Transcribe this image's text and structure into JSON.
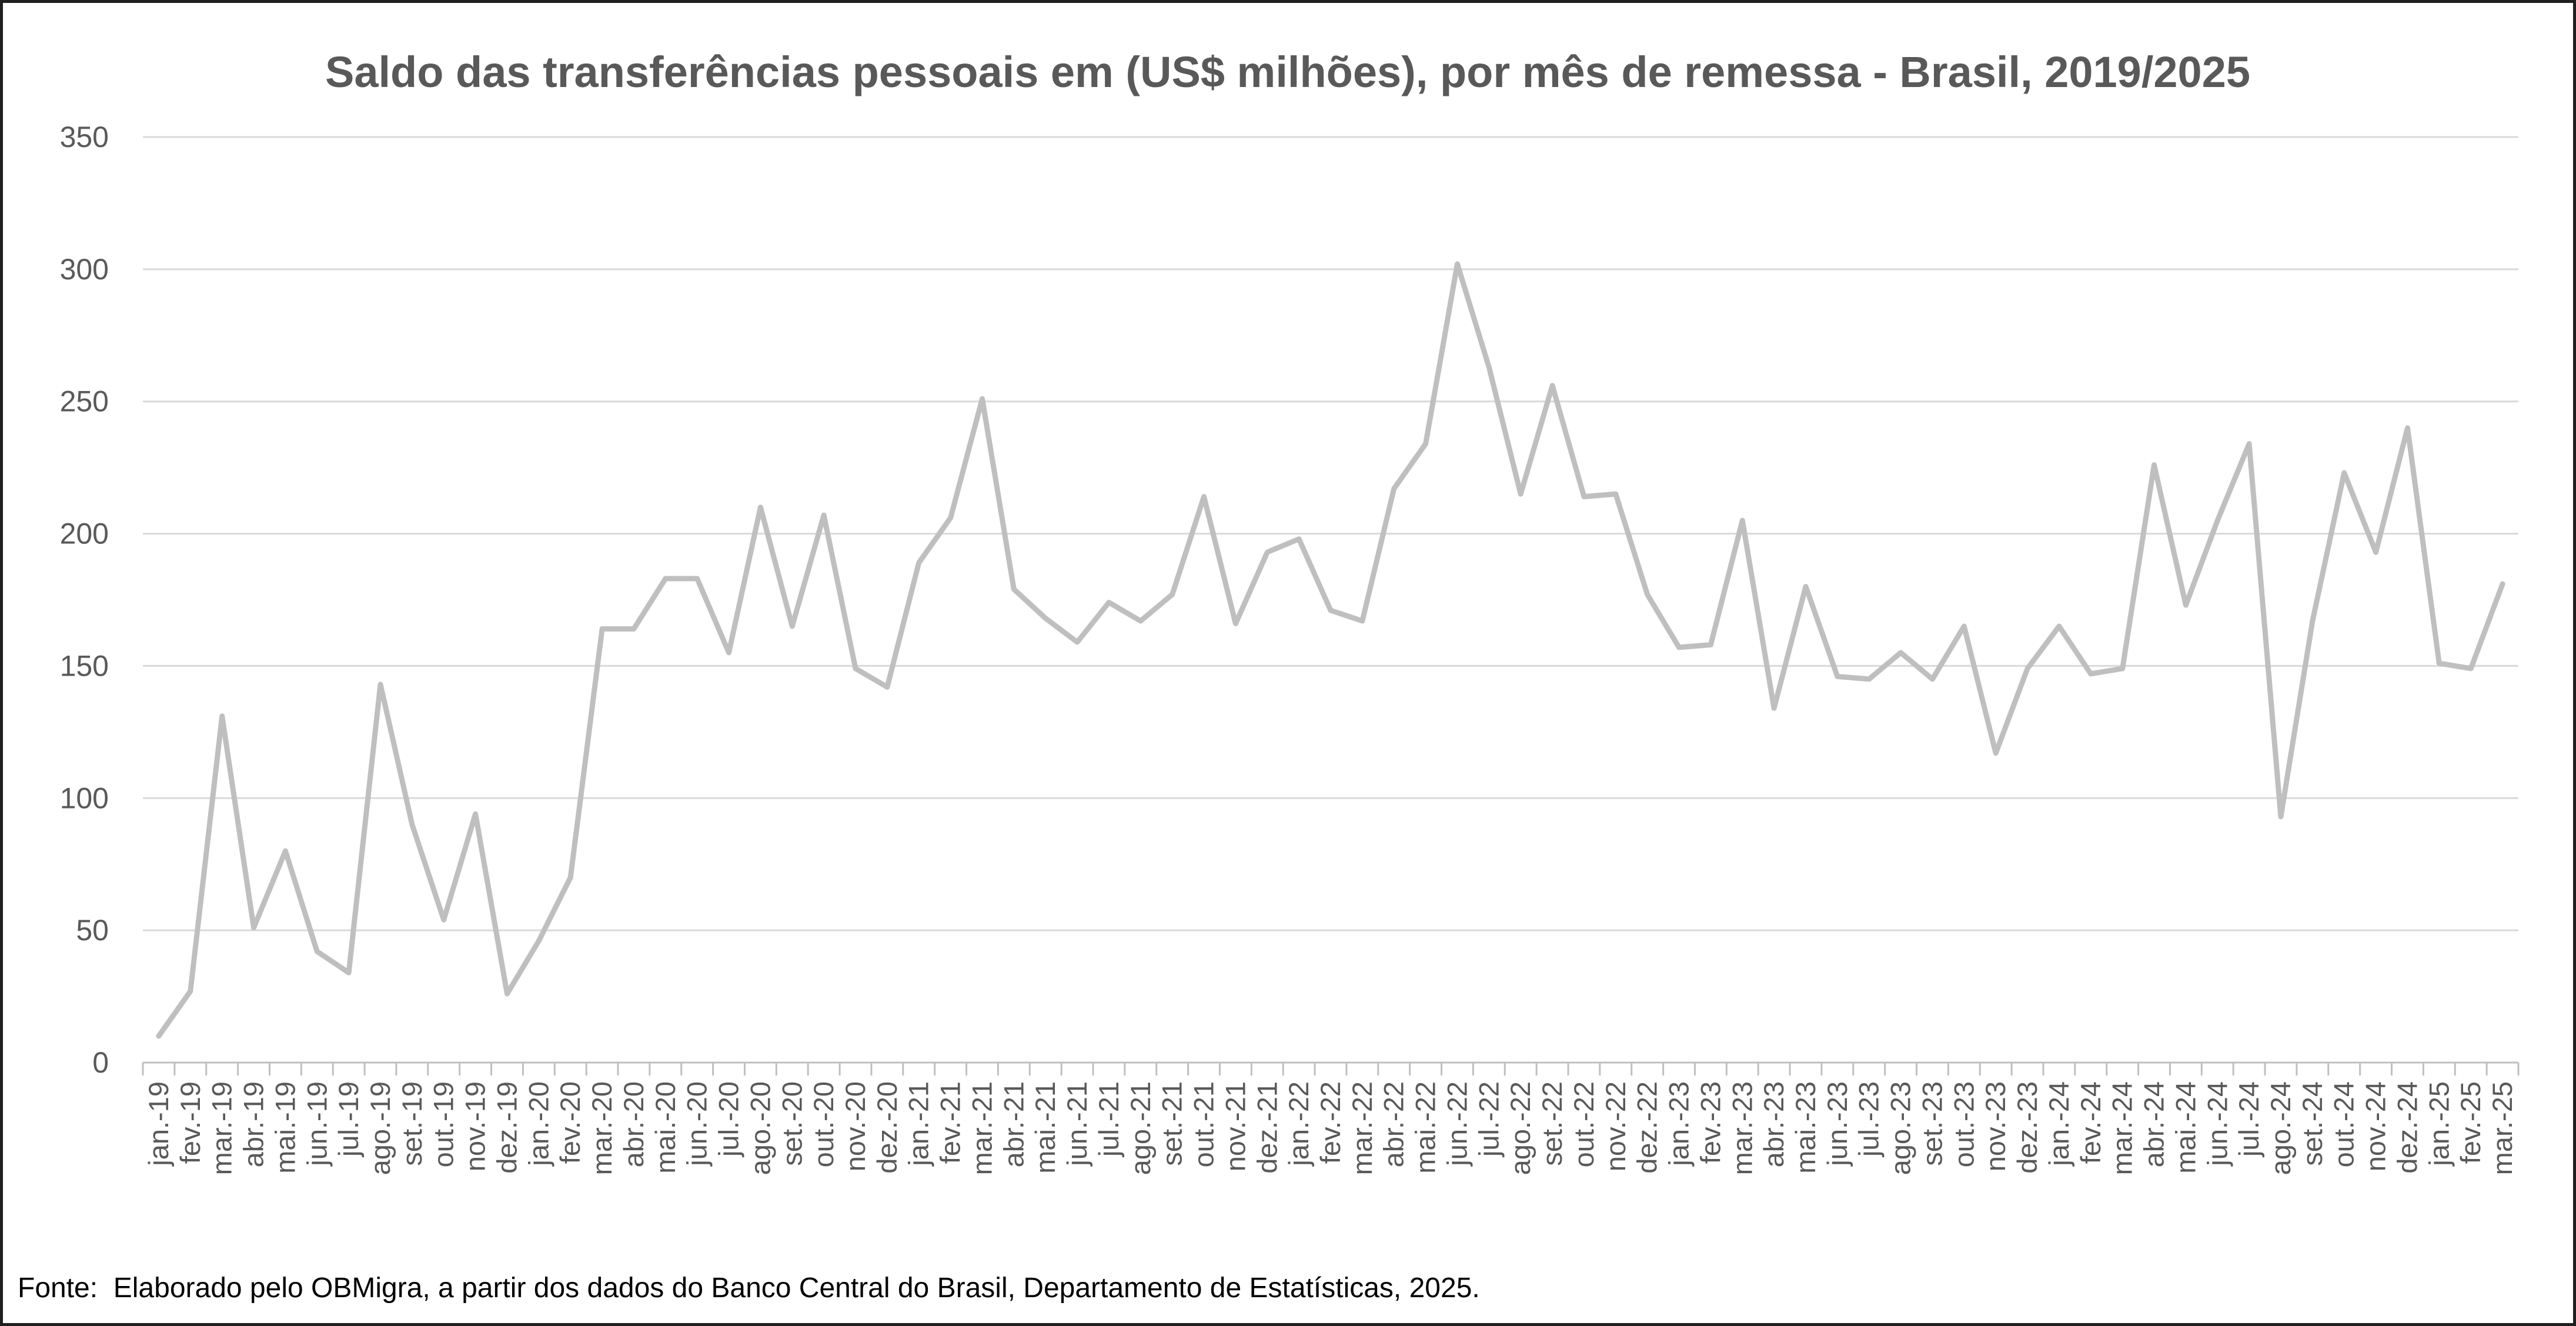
{
  "footer": {
    "source": "Fonte:  Elaborado pelo OBMigra, a partir dos dados do Banco Central do Brasil, Departamento de Estatísticas, 2025."
  },
  "colors": {
    "line": "#BFBFBF",
    "grid": "#D9D9D9",
    "axis": "#BFBFBF",
    "text": "#595959"
  },
  "chart_data": {
    "type": "line",
    "title": "Saldo das transferências pessoais em (US$ milhões), por mês de remessa - Brasil, 2019/2025",
    "xlabel": "",
    "ylabel": "",
    "ylim": [
      0,
      350
    ],
    "yticks": [
      0,
      50,
      100,
      150,
      200,
      250,
      300,
      350
    ],
    "grid": true,
    "legend": "none",
    "categories": [
      "jan.-19",
      "fev.-19",
      "mar.-19",
      "abr.-19",
      "mai.-19",
      "jun.-19",
      "jul.-19",
      "ago.-19",
      "set.-19",
      "out.-19",
      "nov.-19",
      "dez.-19",
      "jan.-20",
      "fev.-20",
      "mar.-20",
      "abr.-20",
      "mai.-20",
      "jun.-20",
      "jul.-20",
      "ago.-20",
      "set.-20",
      "out.-20",
      "nov.-20",
      "dez.-20",
      "jan.-21",
      "fev.-21",
      "mar.-21",
      "abr.-21",
      "mai.-21",
      "jun.-21",
      "jul.-21",
      "ago.-21",
      "set.-21",
      "out.-21",
      "nov.-21",
      "dez.-21",
      "jan.-22",
      "fev.-22",
      "mar.-22",
      "abr.-22",
      "mai.-22",
      "jun.-22",
      "jul.-22",
      "ago.-22",
      "set.-22",
      "out.-22",
      "nov.-22",
      "dez.-22",
      "jan.-23",
      "fev.-23",
      "mar.-23",
      "abr.-23",
      "mai.-23",
      "jun.-23",
      "jul.-23",
      "ago.-23",
      "set.-23",
      "out.-23",
      "nov.-23",
      "dez.-23",
      "jan.-24",
      "fev.-24",
      "mar.-24",
      "abr.-24",
      "mai.-24",
      "jun.-24",
      "jul.-24",
      "ago.-24",
      "set.-24",
      "out.-24",
      "nov.-24",
      "dez.-24",
      "jan.-25",
      "fev.-25",
      "mar.-25"
    ],
    "series": [
      {
        "name": "Saldo das transferências pessoais",
        "values": [
          10,
          27,
          131,
          51,
          80,
          42,
          34,
          143,
          90,
          54,
          94,
          26,
          46,
          70,
          164,
          164,
          183,
          183,
          155,
          210,
          165,
          207,
          149,
          142,
          189,
          206,
          251,
          179,
          168,
          159,
          174,
          167,
          177,
          214,
          166,
          193,
          198,
          171,
          167,
          217,
          234,
          302,
          263,
          215,
          256,
          214,
          215,
          177,
          157,
          158,
          205,
          134,
          180,
          146,
          145,
          155,
          145,
          165,
          117,
          149,
          165,
          147,
          149,
          226,
          173,
          205,
          234,
          93,
          167,
          223,
          193,
          240,
          151,
          149,
          181
        ]
      }
    ]
  }
}
